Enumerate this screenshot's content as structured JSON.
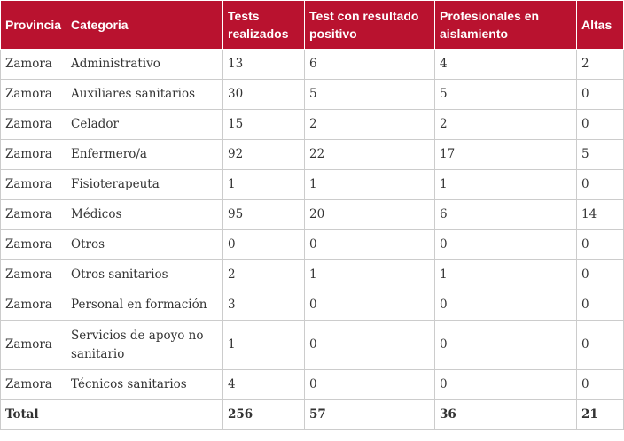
{
  "table": {
    "headers": [
      "Provincia",
      "Categoria",
      "Tests realizados",
      "Test con resultado positivo",
      "Profesionales en aislamiento",
      "Altas"
    ],
    "rows": [
      [
        "Zamora",
        "Administrativo",
        "13",
        "6",
        "4",
        "2"
      ],
      [
        "Zamora",
        "Auxiliares sanitarios",
        "30",
        "5",
        "5",
        "0"
      ],
      [
        "Zamora",
        "Celador",
        "15",
        "2",
        "2",
        "0"
      ],
      [
        "Zamora",
        "Enfermero/a",
        "92",
        "22",
        "17",
        "5"
      ],
      [
        "Zamora",
        "Fisioterapeuta",
        "1",
        "1",
        "1",
        "0"
      ],
      [
        "Zamora",
        "Médicos",
        "95",
        "20",
        "6",
        "14"
      ],
      [
        "Zamora",
        "Otros",
        "0",
        "0",
        "0",
        "0"
      ],
      [
        "Zamora",
        "Otros sanitarios",
        "2",
        "1",
        "1",
        "0"
      ],
      [
        "Zamora",
        "Personal en formación",
        "3",
        "0",
        "0",
        "0"
      ],
      [
        "Zamora",
        "Servicios de apoyo no sanitario",
        "1",
        "0",
        "0",
        "0"
      ],
      [
        "Zamora",
        "Técnicos sanitarios",
        "4",
        "0",
        "0",
        "0"
      ]
    ],
    "total": [
      "Total",
      "",
      "256",
      "57",
      "36",
      "21"
    ]
  },
  "colors": {
    "header_bg": "#b9122f",
    "header_text": "#ffffff",
    "border": "#cccccc",
    "body_text": "#333333"
  }
}
